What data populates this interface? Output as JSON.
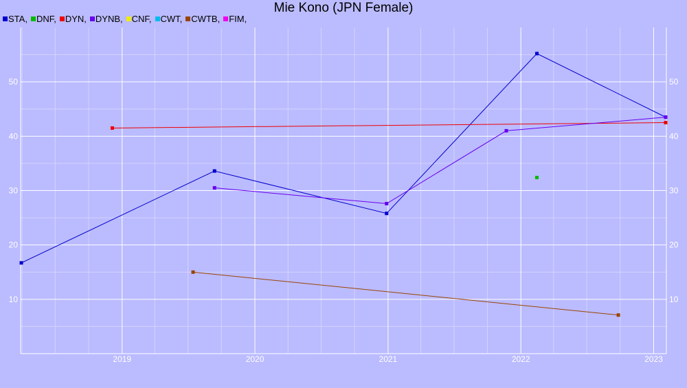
{
  "chart_data": {
    "type": "line",
    "title": "Mie Kono (JPN Female)",
    "xlabel": "",
    "ylabel": "",
    "xlim": [
      "2018-03-28",
      "2023-02-05"
    ],
    "ylim": [
      0,
      60
    ],
    "x_ticks": [
      "2019",
      "2020",
      "2021",
      "2022",
      "2023"
    ],
    "y_ticks": [
      10,
      20,
      30,
      40,
      50
    ],
    "grid": true,
    "legend_position": "top-left",
    "legend": [
      {
        "label": "STA,",
        "color": "#0000cc"
      },
      {
        "label": "DNF,",
        "color": "#00bb00"
      },
      {
        "label": "DYN,",
        "color": "#ee0000"
      },
      {
        "label": "DYNB,",
        "color": "#6600ee"
      },
      {
        "label": "CNF,",
        "color": "#eeee00"
      },
      {
        "label": "CWT,",
        "color": "#00bbee"
      },
      {
        "label": "CWTB,",
        "color": "#994400"
      },
      {
        "label": "FIM,",
        "color": "#ee00ee"
      }
    ],
    "series": [
      {
        "name": "STA",
        "color": "#0000cc",
        "points": [
          {
            "x": "2018-03-30",
            "y": 16.7
          },
          {
            "x": "2019-09-12",
            "y": 33.6
          },
          {
            "x": "2020-12-28",
            "y": 25.8
          },
          {
            "x": "2022-02-14",
            "y": 55.2
          },
          {
            "x": "2023-02-03",
            "y": 43.5
          }
        ]
      },
      {
        "name": "DNF",
        "color": "#00bb00",
        "points": [
          {
            "x": "2022-02-14",
            "y": 32.4
          }
        ]
      },
      {
        "name": "DYN",
        "color": "#ee0000",
        "points": [
          {
            "x": "2018-12-05",
            "y": 41.5
          },
          {
            "x": "2023-02-03",
            "y": 42.5
          }
        ]
      },
      {
        "name": "DYNB",
        "color": "#6600ee",
        "points": [
          {
            "x": "2019-09-12",
            "y": 30.5
          },
          {
            "x": "2020-12-28",
            "y": 27.6
          },
          {
            "x": "2021-11-22",
            "y": 41.0
          },
          {
            "x": "2023-02-03",
            "y": 43.5
          }
        ]
      },
      {
        "name": "CWTB",
        "color": "#994400",
        "points": [
          {
            "x": "2019-07-15",
            "y": 15.0
          },
          {
            "x": "2022-09-26",
            "y": 7.1
          }
        ]
      }
    ]
  }
}
